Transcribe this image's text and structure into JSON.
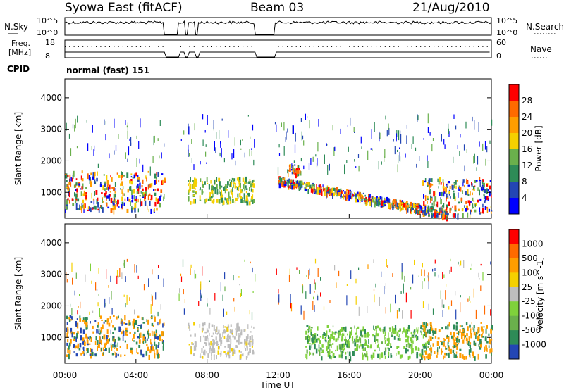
{
  "header": {
    "station": "Syowa East (fitACF)",
    "beam": "Beam 03",
    "date": "21/Aug/2010"
  },
  "noise_panel": {
    "left_label": "N.Sky",
    "right_label": "N.Search",
    "left_ticks": [
      "10^5",
      "10^0"
    ],
    "right_ticks": [
      "10^5",
      "10^0"
    ]
  },
  "freq_panel": {
    "left_label_line1": "Freq.",
    "left_label_line2": "[MHz]",
    "right_label": "Nave",
    "left_ticks": [
      "18",
      "8"
    ],
    "right_ticks": [
      "60",
      "0"
    ]
  },
  "cpid": {
    "label": "CPID",
    "value": "normal (fast) 151"
  },
  "chart_data": [
    {
      "type": "heatmap",
      "title": "",
      "xlabel": "",
      "ylabel": "Slant Range [km]",
      "x_ticks": [
        "00:00",
        "04:00",
        "08:00",
        "12:00",
        "16:00",
        "20:00",
        "00:00"
      ],
      "x_range_hours": [
        0,
        24
      ],
      "y_ticks": [
        1000,
        2000,
        3000,
        4000
      ],
      "ylim": [
        180,
        4600
      ],
      "colorbar_label": "Power [dB]",
      "colorbar_ticks": [
        "28",
        "24",
        "20",
        "16",
        "12",
        "8",
        "4"
      ],
      "colorbar_colors": [
        "#0000ff",
        "#2346b4",
        "#2e8b57",
        "#6ab04c",
        "#f5d000",
        "#ff9d00",
        "#ff6a00",
        "#ff0000"
      ],
      "gaps_hours": [
        [
          5.6,
          6.4
        ],
        [
          6.75,
          6.9
        ],
        [
          7.35,
          7.5
        ],
        [
          10.7,
          11.8
        ]
      ],
      "regions": [
        {
          "x": [
            0.0,
            5.6
          ],
          "y": [
            450,
            1700
          ],
          "level": "high"
        },
        {
          "x": [
            6.9,
            10.6
          ],
          "y": [
            700,
            1500
          ],
          "level": "medium"
        },
        {
          "x": [
            12.5,
            13.2
          ],
          "y": [
            1600,
            1900
          ],
          "level": "high"
        },
        {
          "x": [
            12.0,
            21.5
          ],
          "y": [
            300,
            1500
          ],
          "level": "high",
          "note": "descending band"
        },
        {
          "x": [
            20.0,
            24.0
          ],
          "y": [
            300,
            1500
          ],
          "level": "medium"
        }
      ]
    },
    {
      "type": "heatmap",
      "title": "",
      "xlabel": "Time UT",
      "ylabel": "Slant Range [km]",
      "x_ticks": [
        "00:00",
        "04:00",
        "08:00",
        "12:00",
        "16:00",
        "20:00",
        "00:00"
      ],
      "x_range_hours": [
        0,
        24
      ],
      "y_ticks": [
        1000,
        2000,
        3000,
        4000
      ],
      "ylim": [
        180,
        4600
      ],
      "colorbar_label": "Velocity [m s^-1]",
      "colorbar_ticks": [
        "1000",
        "500",
        "100",
        "25",
        "-25",
        "-100",
        "-500",
        "-1000"
      ],
      "colorbar_colors": [
        "#2346b4",
        "#2e8b57",
        "#6ab04c",
        "#7fd13b",
        "#bdbdbd",
        "#f5d000",
        "#ff9d00",
        "#ff6a00",
        "#ff0000"
      ],
      "regions": [
        {
          "x": [
            0.0,
            5.6
          ],
          "y": [
            450,
            1700
          ],
          "level": "orange/blue mix"
        },
        {
          "x": [
            6.9,
            10.6
          ],
          "y": [
            400,
            1500
          ],
          "level": "grey"
        },
        {
          "x": [
            13.5,
            20.5
          ],
          "y": [
            400,
            1400
          ],
          "level": "green"
        },
        {
          "x": [
            20.0,
            24.0
          ],
          "y": [
            400,
            1500
          ],
          "level": "orange"
        }
      ]
    }
  ]
}
